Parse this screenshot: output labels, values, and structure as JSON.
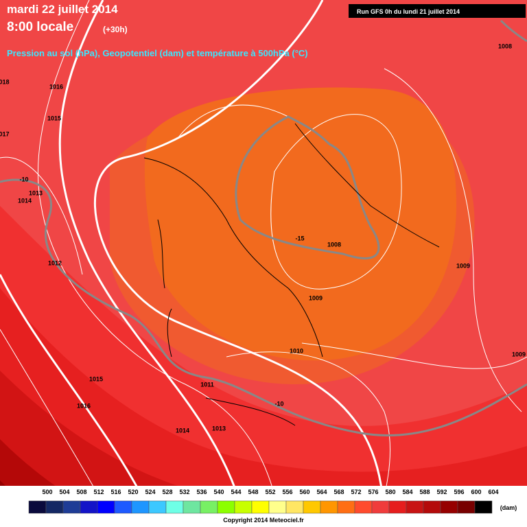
{
  "header": {
    "title": "mardi 22 juillet 2014",
    "time": "8:00 locale",
    "offset": "(+30h)",
    "subtitle": "Pression au sol (hPa), Geopotentiel (dam) et température à 500hPa (°C)",
    "run": "Run GFS 0h du lundi 21 juillet 2014"
  },
  "map_labels": [
    "018",
    "1016",
    "1015",
    "017",
    "-10",
    "1014",
    "1013",
    "1012",
    "1008",
    "-15",
    "1008",
    "1009",
    "1009",
    "1010",
    "1009",
    "1011",
    "1015",
    "1016",
    "-10",
    "1014",
    "1013"
  ],
  "legend": {
    "ticks": [
      500,
      504,
      508,
      512,
      516,
      520,
      524,
      528,
      532,
      536,
      540,
      544,
      548,
      552,
      556,
      560,
      564,
      568,
      572,
      576,
      580,
      584,
      588,
      592,
      596,
      600,
      604
    ],
    "colors": [
      "#0a0a3c",
      "#142864",
      "#1e3c96",
      "#1414c8",
      "#0000ff",
      "#1e5aff",
      "#1e96ff",
      "#3cc8ff",
      "#6effe6",
      "#6ee6a0",
      "#78f064",
      "#8cff00",
      "#c8ff00",
      "#ffff00",
      "#ffff8c",
      "#ffe664",
      "#ffc800",
      "#ff9600",
      "#ff6e14",
      "#ff4b2d",
      "#f03c3c",
      "#e61e1e",
      "#c81414",
      "#b40a0a",
      "#960000",
      "#780000",
      "#000000"
    ],
    "unit": "(dam)"
  },
  "footer": {
    "copyright": "Copyright 2014 Meteociel.fr"
  }
}
